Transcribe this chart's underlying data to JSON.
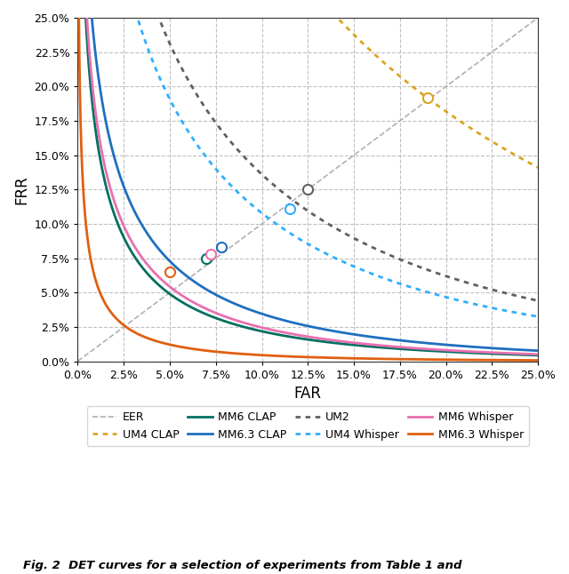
{
  "title": "",
  "xlabel": "FAR",
  "ylabel": "FRR",
  "xlim": [
    0.0,
    0.25
  ],
  "ylim": [
    0.0,
    0.25
  ],
  "xticks": [
    0.0,
    0.025,
    0.05,
    0.075,
    0.1,
    0.125,
    0.15,
    0.175,
    0.2,
    0.225,
    0.25
  ],
  "yticks": [
    0.0,
    0.025,
    0.05,
    0.075,
    0.1,
    0.125,
    0.15,
    0.175,
    0.2,
    0.225,
    0.25
  ],
  "curves": [
    {
      "label": "EER",
      "color": "#b0b0b0",
      "ls": "--",
      "lw": 1.2,
      "dotted": false,
      "eer_far": null,
      "eer_frr": null,
      "mu_diff": 0,
      "sigma": 1.0
    },
    {
      "label": "UM4 CLAP",
      "color": "#DAA520",
      "ls": "dotted",
      "lw": 2.0,
      "dotted": true,
      "eer_far": 0.19,
      "eer_frr": 0.192,
      "mu_diff": 1.75,
      "sigma": 1.0
    },
    {
      "label": "MM6 CLAP",
      "color": "#007060",
      "ls": "-",
      "lw": 2.0,
      "dotted": false,
      "eer_far": 0.07,
      "eer_frr": 0.075,
      "mu_diff": 3.3,
      "sigma": 1.0
    },
    {
      "label": "MM6.3 CLAP",
      "color": "#1f6fbf",
      "ls": "-",
      "lw": 2.0,
      "dotted": false,
      "eer_far": 0.078,
      "eer_frr": 0.083,
      "mu_diff": 3.1,
      "sigma": 1.0
    },
    {
      "label": "UM2",
      "color": "#606060",
      "ls": "dotted",
      "lw": 2.0,
      "dotted": true,
      "eer_far": 0.125,
      "eer_frr": 0.125,
      "mu_diff": 2.38,
      "sigma": 1.0
    },
    {
      "label": "UM4 Whisper",
      "color": "#30AEFF",
      "ls": "dotted",
      "lw": 2.0,
      "dotted": true,
      "eer_far": 0.115,
      "eer_frr": 0.111,
      "mu_diff": 2.52,
      "sigma": 1.0
    },
    {
      "label": "MM6 Whisper",
      "color": "#E870B0",
      "ls": "-",
      "lw": 2.0,
      "dotted": false,
      "eer_far": 0.072,
      "eer_frr": 0.078,
      "mu_diff": 3.25,
      "sigma": 1.0
    },
    {
      "label": "MM6.3 Whisper",
      "color": "#E06010",
      "ls": "-",
      "lw": 2.0,
      "dotted": false,
      "eer_far": 0.05,
      "eer_frr": 0.065,
      "mu_diff": 3.9,
      "sigma": 1.0
    }
  ],
  "figsize": [
    6.4,
    6.46
  ],
  "dpi": 100,
  "background_color": "#ffffff",
  "grid_color": "#c0c0c0",
  "caption": "Fig. 2  DET curves for a selection of experiments from Table 1 and"
}
